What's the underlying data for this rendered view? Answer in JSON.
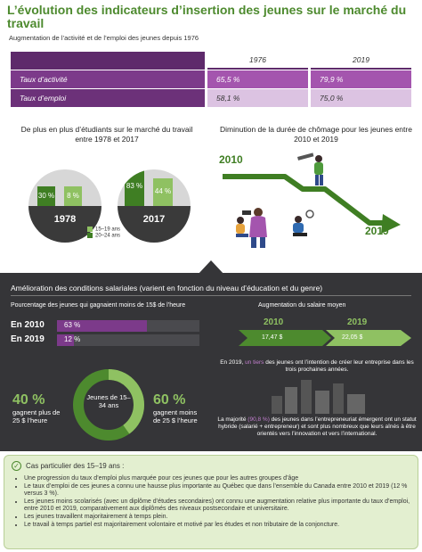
{
  "title": "L’évolution des indicateurs d’insertion des jeunes sur le marché du travail",
  "subtitle": "Augmentation de l’activité et de l’emploi des jeunes depuis 1976",
  "table": {
    "years": [
      "1976",
      "2019"
    ],
    "rows": [
      {
        "label": "Taux d’activité",
        "v1976": "65,5 %",
        "v2019": "79,9 %"
      },
      {
        "label": "Taux d’emploi",
        "v1976": "58,1 %",
        "v2019": "75,0 %"
      }
    ]
  },
  "students": {
    "title": "De plus en plus d’étudiants sur le marché du travail entre 1978 et 2017",
    "y1978": {
      "year": "1978",
      "a": "30 %",
      "b": "8 %"
    },
    "y2017": {
      "year": "2017",
      "a": "83 %",
      "b": "44 %"
    },
    "legend": [
      "15–19 ans",
      "20–24 ans"
    ]
  },
  "chomage": {
    "title": "Diminution de la durée de chômage pour les jeunes entre 2010 et 2019",
    "start": "2010",
    "end": "2019"
  },
  "salary": {
    "heading": "Amélioration des conditions salariales (varient en fonction du niveau d’éducation et du genre)",
    "low_title": "Pourcentage des jeunes qui gagnaient moins de 15$ de l’heure",
    "low": [
      {
        "year": "En 2010",
        "value": "63 %",
        "fraction": 0.63
      },
      {
        "year": "En 2019",
        "value": "12 %",
        "fraction": 0.12
      }
    ],
    "avg_title": "Augmentation du salaire moyen",
    "avg": [
      {
        "year": "2010",
        "value": "17,47 $"
      },
      {
        "year": "2019",
        "value": "22,05 $"
      }
    ],
    "left_pct": "40 %",
    "left_text": "gagnent plus de 25 $ l’heure",
    "donut_label": "Jeunes de 15–34 ans",
    "right_pct": "60 %",
    "right_text": "gagnent moins de 25 $ l’heure",
    "entrepreneur_1a": "En 2019,",
    "entrepreneur_1b": "un tiers",
    "entrepreneur_1c": "des jeunes ont l’intention de créer leur entreprise dans les trois prochaines années.",
    "entrepreneur_2a": "La majorité",
    "entrepreneur_2b": "(90,8 %)",
    "entrepreneur_2c": "des jeunes dans l’entrepreneuriat émergent ont un statut hybride (salarié + entrepreneur) et sont plus nombreux que leurs aînés à être orientés vers l’innovation et vers l’international."
  },
  "particular": {
    "title": "Cas particulier des 15–19 ans :",
    "items": [
      "Une progression du taux d’emploi plus marquée pour ces jeunes que pour les autres groupes d’âge",
      "Le taux d’emploi de ces jeunes a connu une hausse plus importante au Québec que dans l’ensemble du Canada entre 2010 et 2019 (12 % versus 3 %).",
      "Les jeunes moins scolarisés (avec un diplôme d’études secondaires) ont connu une augmentation relative plus importante du taux d’emploi, entre 2010 et 2019, comparativement aux diplômés des niveaux postsecondaire et universitaire.",
      "Les jeunes travaillent majoritairement à temps plein.",
      "Le travail à temps partiel est majoritairement volontaire et motivé par les études et non tributaire de la conjoncture."
    ]
  },
  "colors": {
    "green": "#4d8a2e",
    "purple": "#7c3a8a",
    "dark": "#353538"
  }
}
